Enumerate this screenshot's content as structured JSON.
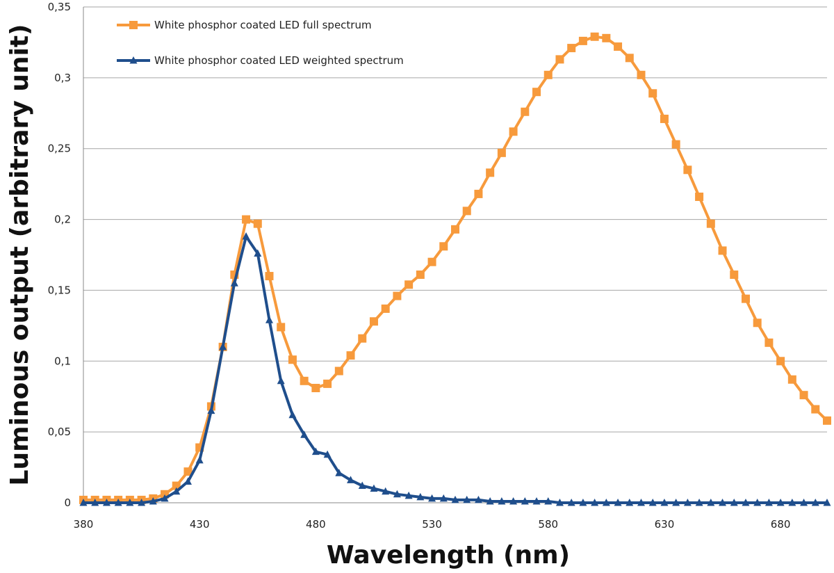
{
  "chart_data": {
    "type": "line",
    "title": "",
    "xlabel": "Wavelength (nm)",
    "ylabel": "Luminous output (arbitrary unit)",
    "xlim": [
      380,
      700
    ],
    "ylim": [
      0,
      0.35
    ],
    "x_ticks": [
      380,
      430,
      480,
      530,
      580,
      630,
      680
    ],
    "x_tick_labels": [
      "380",
      "430",
      "480",
      "530",
      "580",
      "630",
      "680"
    ],
    "y_ticks": [
      0,
      0.05,
      0.1,
      0.15,
      0.2,
      0.25,
      0.3,
      0.35
    ],
    "y_tick_labels": [
      "0",
      "0,05",
      "0,1",
      "0,15",
      "0,2",
      "0,25",
      "0,3",
      "0,35"
    ],
    "grid": "horizontal",
    "legend_position": "top-left",
    "x": [
      380,
      385,
      390,
      395,
      400,
      405,
      410,
      415,
      420,
      425,
      430,
      435,
      440,
      445,
      450,
      455,
      460,
      465,
      470,
      475,
      480,
      485,
      490,
      495,
      500,
      505,
      510,
      515,
      520,
      525,
      530,
      535,
      540,
      545,
      550,
      555,
      560,
      565,
      570,
      575,
      580,
      585,
      590,
      595,
      600,
      605,
      610,
      615,
      620,
      625,
      630,
      635,
      640,
      645,
      650,
      655,
      660,
      665,
      670,
      675,
      680,
      685,
      690,
      695,
      700
    ],
    "series": [
      {
        "name": "White phosphor coated LED full spectrum",
        "color": "#f79a3c",
        "marker": "square",
        "values": [
          0.002,
          0.002,
          0.002,
          0.002,
          0.002,
          0.002,
          0.003,
          0.006,
          0.012,
          0.022,
          0.039,
          0.068,
          0.11,
          0.161,
          0.2,
          0.197,
          0.16,
          0.124,
          0.101,
          0.086,
          0.081,
          0.084,
          0.093,
          0.104,
          0.116,
          0.128,
          0.137,
          0.146,
          0.154,
          0.161,
          0.17,
          0.181,
          0.193,
          0.206,
          0.218,
          0.233,
          0.247,
          0.262,
          0.276,
          0.29,
          0.302,
          0.313,
          0.321,
          0.326,
          0.329,
          0.328,
          0.322,
          0.314,
          0.302,
          0.289,
          0.271,
          0.253,
          0.235,
          0.216,
          0.197,
          0.178,
          0.161,
          0.144,
          0.127,
          0.113,
          0.1,
          0.087,
          0.076,
          0.066,
          0.058
        ]
      },
      {
        "name": "White phosphor coated LED weighted spectrum",
        "color": "#1f4e8c",
        "marker": "triangle",
        "values": [
          0.0,
          0.0,
          0.0,
          0.0,
          0.0,
          0.0,
          0.001,
          0.003,
          0.008,
          0.015,
          0.03,
          0.065,
          0.11,
          0.155,
          0.188,
          0.176,
          0.129,
          0.086,
          0.062,
          0.048,
          0.036,
          0.034,
          0.021,
          0.016,
          0.012,
          0.01,
          0.008,
          0.006,
          0.005,
          0.004,
          0.003,
          0.003,
          0.002,
          0.002,
          0.002,
          0.001,
          0.001,
          0.001,
          0.001,
          0.001,
          0.001,
          0.0,
          0.0,
          0.0,
          0.0,
          0.0,
          0.0,
          0.0,
          0.0,
          0.0,
          0.0,
          0.0,
          0.0,
          0.0,
          0.0,
          0.0,
          0.0,
          0.0,
          0.0,
          0.0,
          0.0,
          0.0,
          0.0,
          0.0,
          0.0
        ]
      }
    ]
  },
  "colors": {
    "grid": "#a6a6a6",
    "axis": "#888888"
  }
}
